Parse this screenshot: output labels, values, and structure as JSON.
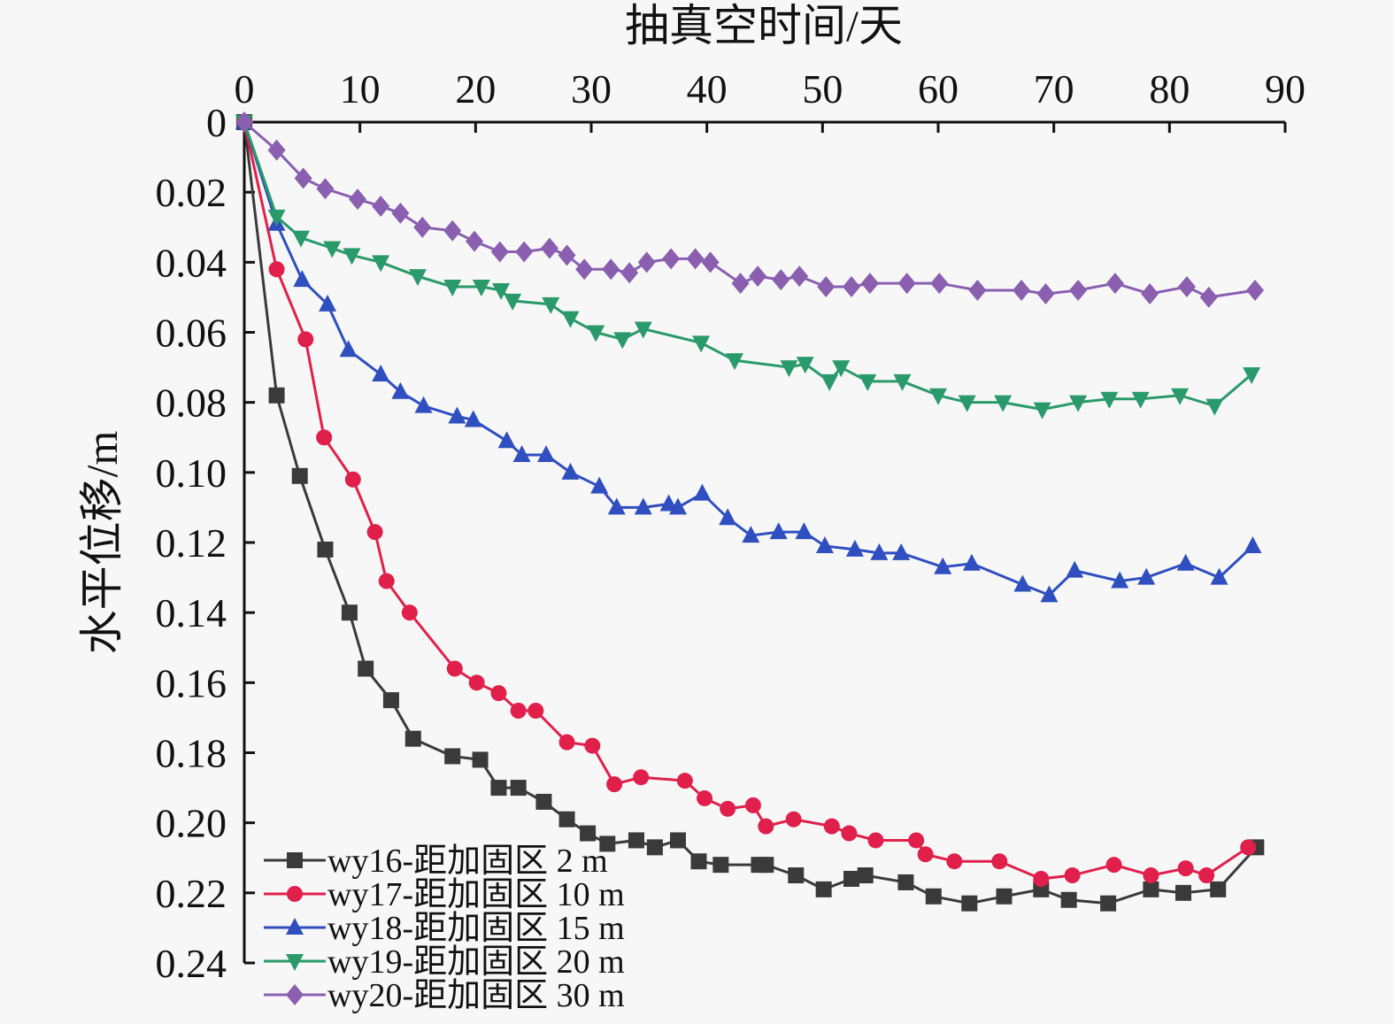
{
  "chart_data": {
    "type": "line",
    "title": "",
    "xlabel": "抽真空时间/天",
    "ylabel": "水平位移/m",
    "xlim": [
      0,
      90
    ],
    "ylim": [
      0,
      0.24
    ],
    "x_axis_position": "top",
    "y_axis_inverted": true,
    "grid": false,
    "legend_position": "bottom-left",
    "xticks": [
      "0",
      "10",
      "20",
      "30",
      "40",
      "50",
      "60",
      "70",
      "80",
      "90"
    ],
    "yticks": [
      "0",
      "0.02",
      "0.04",
      "0.06",
      "0.08",
      "0.10",
      "0.12",
      "0.14",
      "0.16",
      "0.18",
      "0.20",
      "0.22",
      "0.24"
    ],
    "series": [
      {
        "name": "wy16-距加固区 2 m",
        "color": "#3a3a3a",
        "marker": "square",
        "x": [
          0,
          2.8,
          4.8,
          7.0,
          9.1,
          10.5,
          12.7,
          14.6,
          18.0,
          20.4,
          22.0,
          23.7,
          25.9,
          27.9,
          29.7,
          31.4,
          33.9,
          35.5,
          37.5,
          39.3,
          41.2,
          44.5,
          45.1,
          47.7,
          50.1,
          52.5,
          53.7,
          57.2,
          59.6,
          62.7,
          65.7,
          68.9,
          71.3,
          74.7,
          78.4,
          81.2,
          84.2,
          87.5
        ],
        "y": [
          0,
          0.078,
          0.101,
          0.122,
          0.14,
          0.156,
          0.165,
          0.176,
          0.181,
          0.182,
          0.19,
          0.19,
          0.194,
          0.199,
          0.203,
          0.206,
          0.205,
          0.207,
          0.205,
          0.211,
          0.212,
          0.212,
          0.212,
          0.215,
          0.219,
          0.216,
          0.215,
          0.217,
          0.221,
          0.223,
          0.221,
          0.219,
          0.222,
          0.223,
          0.219,
          0.22,
          0.219,
          0.207
        ]
      },
      {
        "name": "wy17-距加固区 10 m",
        "color": "#e0204a",
        "marker": "circle",
        "x": [
          0,
          2.8,
          5.3,
          6.9,
          9.4,
          11.3,
          12.3,
          14.3,
          18.2,
          20.1,
          22.0,
          23.7,
          25.2,
          27.9,
          30.1,
          32.0,
          34.3,
          38.1,
          39.8,
          41.8,
          44.0,
          45.1,
          47.5,
          50.8,
          52.3,
          54.6,
          58.1,
          58.9,
          61.4,
          65.3,
          68.9,
          71.6,
          75.2,
          78.4,
          81.4,
          83.2,
          86.8
        ],
        "y": [
          0,
          0.042,
          0.062,
          0.09,
          0.102,
          0.117,
          0.131,
          0.14,
          0.156,
          0.16,
          0.163,
          0.168,
          0.168,
          0.177,
          0.178,
          0.189,
          0.187,
          0.188,
          0.193,
          0.196,
          0.195,
          0.201,
          0.199,
          0.201,
          0.203,
          0.205,
          0.205,
          0.209,
          0.211,
          0.211,
          0.216,
          0.215,
          0.212,
          0.215,
          0.213,
          0.215,
          0.207
        ]
      },
      {
        "name": "wy18-距加固区 15 m",
        "color": "#2f4fc0",
        "marker": "triangle-up",
        "x": [
          0,
          2.8,
          5.0,
          7.2,
          9.0,
          11.8,
          13.5,
          15.5,
          18.4,
          19.8,
          22.7,
          24.0,
          26.1,
          28.2,
          30.7,
          32.2,
          34.5,
          36.7,
          37.5,
          39.6,
          41.8,
          43.8,
          46.2,
          48.4,
          50.2,
          52.8,
          54.9,
          56.8,
          60.4,
          62.9,
          67.3,
          69.6,
          71.8,
          75.7,
          78.0,
          81.4,
          84.3,
          87.2
        ],
        "y": [
          0,
          0.029,
          0.045,
          0.052,
          0.065,
          0.072,
          0.077,
          0.081,
          0.084,
          0.085,
          0.091,
          0.095,
          0.095,
          0.1,
          0.104,
          0.11,
          0.11,
          0.109,
          0.11,
          0.106,
          0.113,
          0.118,
          0.117,
          0.117,
          0.121,
          0.122,
          0.123,
          0.123,
          0.127,
          0.126,
          0.132,
          0.135,
          0.128,
          0.131,
          0.13,
          0.126,
          0.13,
          0.121
        ]
      },
      {
        "name": "wy19-距加固区 20 m",
        "color": "#2a9a6a",
        "marker": "triangle-down",
        "x": [
          0,
          2.8,
          4.9,
          7.6,
          9.3,
          11.8,
          15.0,
          18.0,
          20.5,
          22.2,
          23.2,
          26.5,
          28.2,
          30.4,
          32.7,
          34.5,
          39.5,
          42.4,
          47.1,
          48.5,
          50.6,
          51.6,
          53.9,
          56.9,
          60.0,
          62.5,
          65.6,
          69.0,
          72.1,
          74.8,
          77.5,
          80.9,
          83.9,
          87.1
        ],
        "y": [
          0,
          0.027,
          0.033,
          0.036,
          0.038,
          0.04,
          0.044,
          0.047,
          0.047,
          0.048,
          0.051,
          0.052,
          0.056,
          0.06,
          0.062,
          0.059,
          0.063,
          0.068,
          0.07,
          0.069,
          0.074,
          0.07,
          0.074,
          0.074,
          0.078,
          0.08,
          0.08,
          0.082,
          0.08,
          0.079,
          0.079,
          0.078,
          0.081,
          0.072
        ]
      },
      {
        "name": "wy20-距加固区 30 m",
        "color": "#8a5fb0",
        "marker": "diamond",
        "x": [
          0,
          2.8,
          5.1,
          7.0,
          9.8,
          11.8,
          13.5,
          15.4,
          18.0,
          19.9,
          22.1,
          24.2,
          26.4,
          27.9,
          29.4,
          31.7,
          33.3,
          34.8,
          36.9,
          39.0,
          40.3,
          42.9,
          44.4,
          46.4,
          48.0,
          50.3,
          52.5,
          54.1,
          57.3,
          60.1,
          63.4,
          67.2,
          69.3,
          72.1,
          75.3,
          78.3,
          81.5,
          83.4,
          87.4
        ],
        "y": [
          0,
          0.008,
          0.016,
          0.019,
          0.022,
          0.024,
          0.026,
          0.03,
          0.031,
          0.034,
          0.037,
          0.037,
          0.036,
          0.038,
          0.042,
          0.042,
          0.043,
          0.04,
          0.039,
          0.039,
          0.04,
          0.046,
          0.044,
          0.045,
          0.044,
          0.047,
          0.047,
          0.046,
          0.046,
          0.046,
          0.048,
          0.048,
          0.049,
          0.048,
          0.046,
          0.049,
          0.047,
          0.05,
          0.048
        ]
      }
    ]
  }
}
